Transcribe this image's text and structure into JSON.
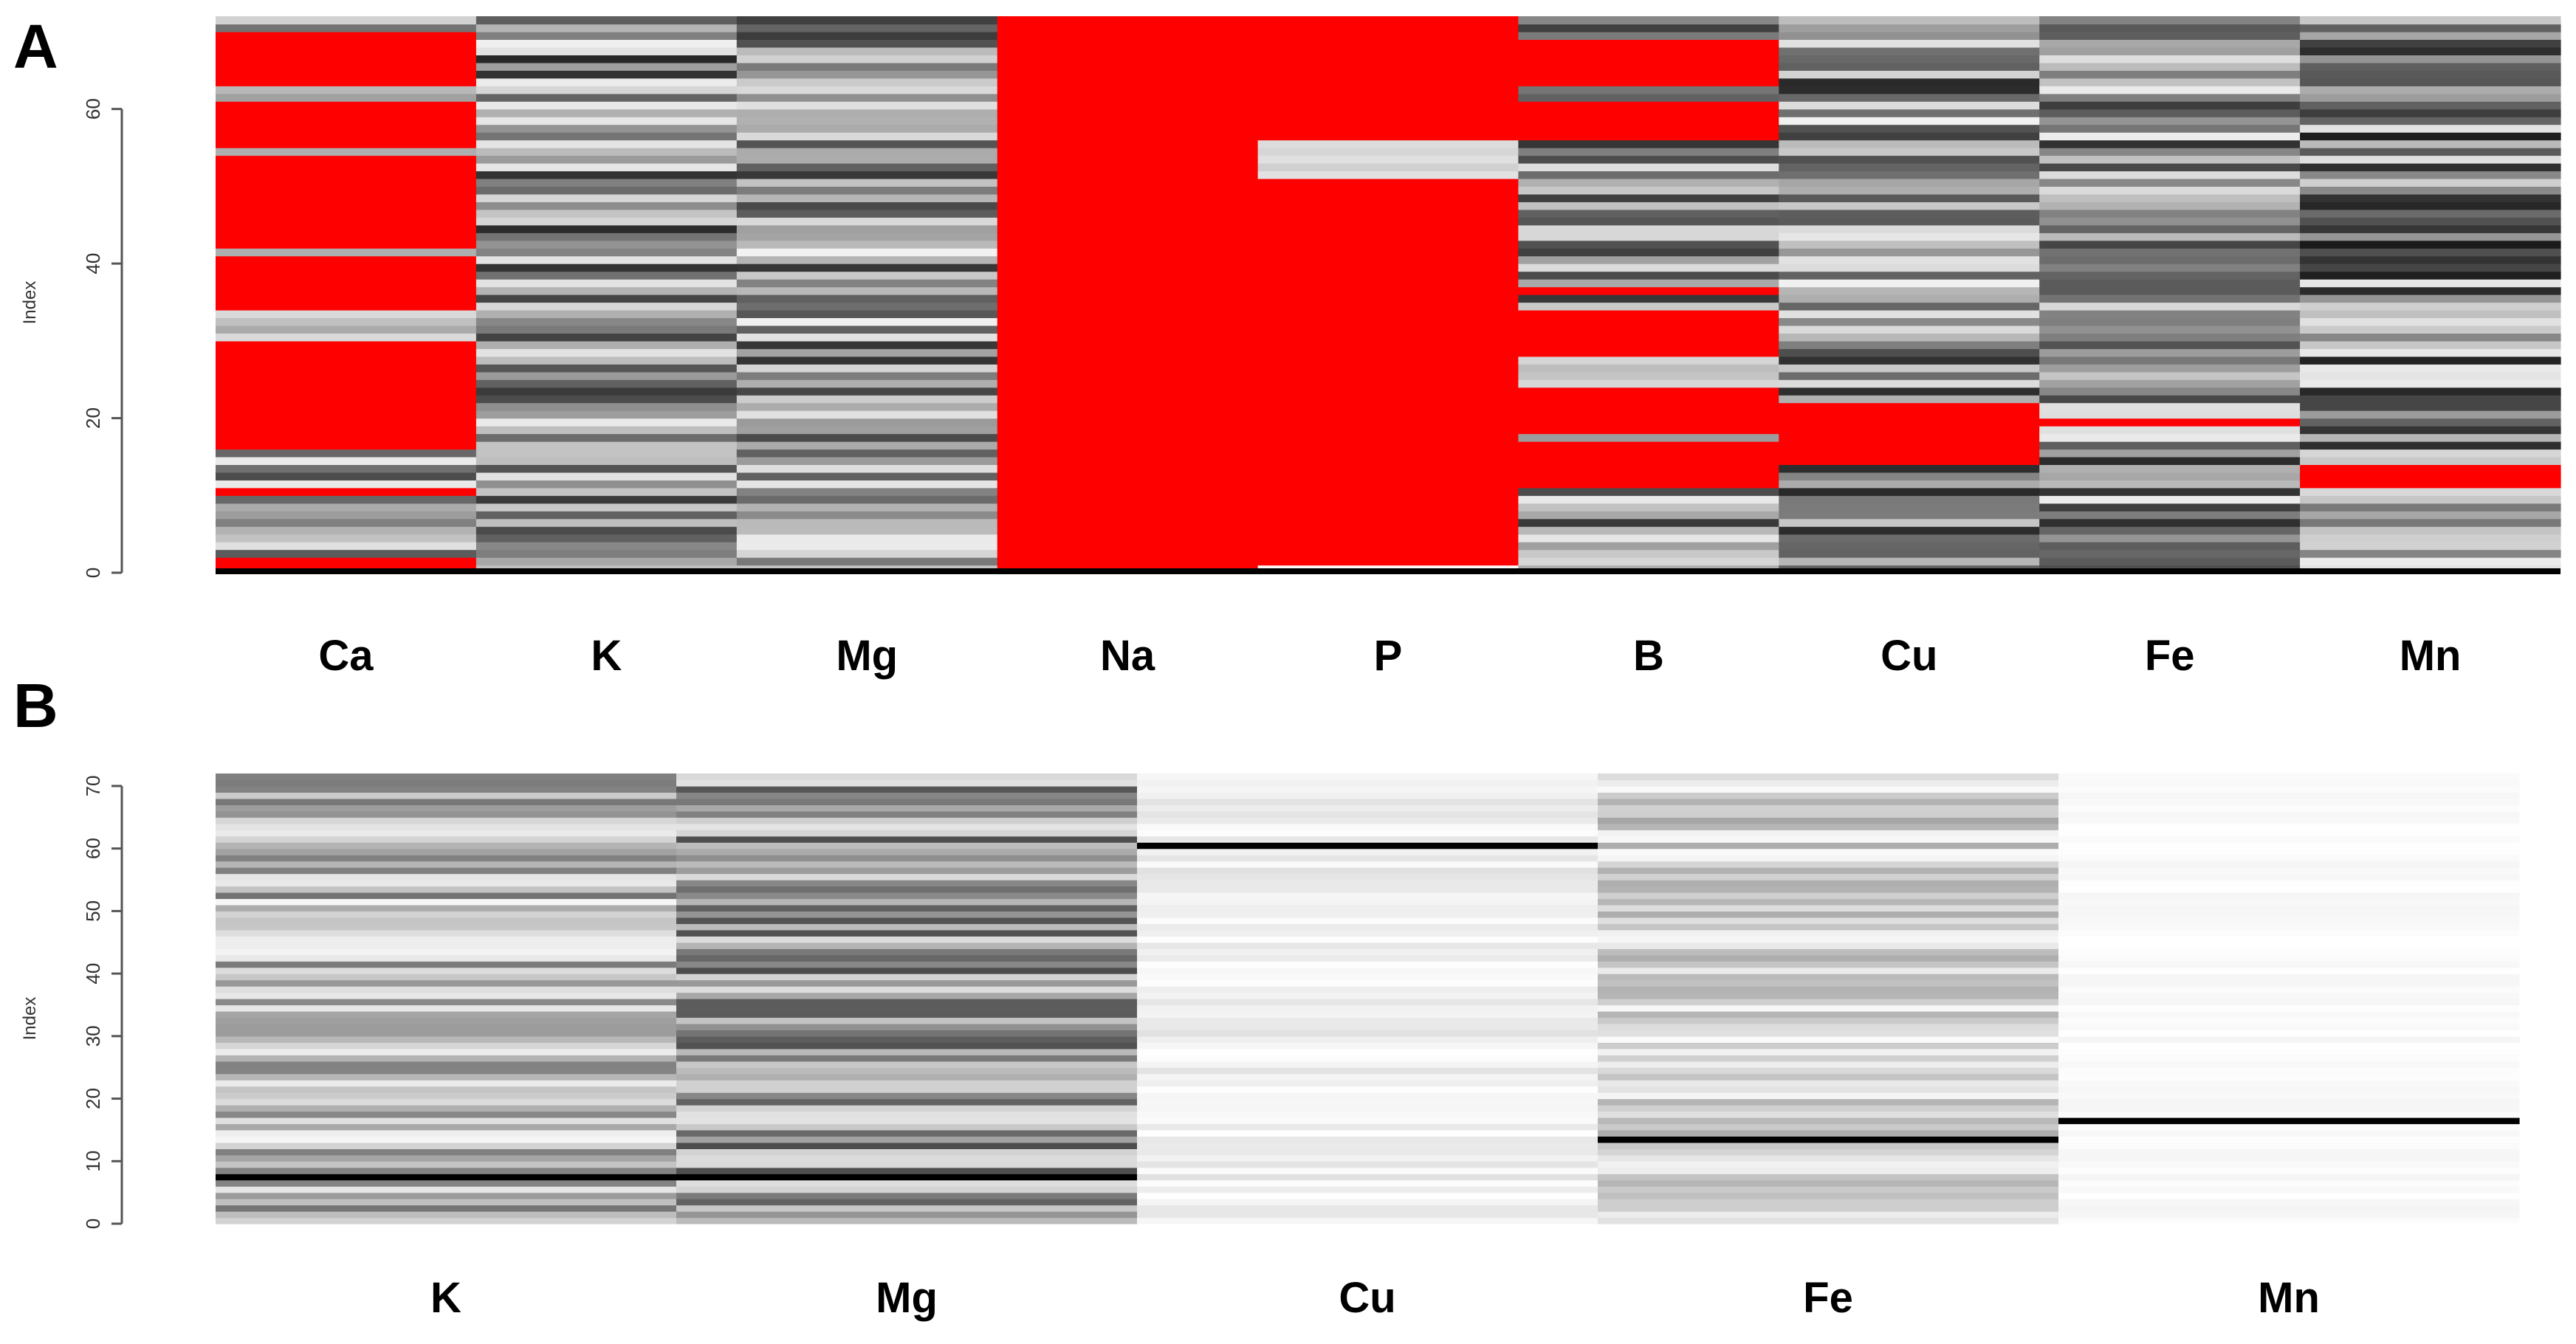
{
  "chart_data": [
    {
      "type": "heatmap",
      "panel_label": "A",
      "ylabel": "Index",
      "ylim": [
        0,
        72
      ],
      "yticks": [
        0,
        20,
        40,
        60
      ],
      "columns": [
        "Ca",
        "K",
        "Mg",
        "Na",
        "P",
        "B",
        "Cu",
        "Fe",
        "Mn"
      ],
      "rows": 72,
      "highlight_color": "#ff0000",
      "palette": "grayscale, white = low, black = high"
    },
    {
      "type": "heatmap",
      "panel_label": "B",
      "ylabel": "Index",
      "ylim": [
        0,
        72
      ],
      "yticks": [
        0,
        10,
        20,
        30,
        40,
        50,
        60,
        70
      ],
      "columns": [
        "K",
        "Mg",
        "Cu",
        "Fe",
        "Mn"
      ],
      "rows": 72,
      "palette": "grayscale, white = low, black = high"
    }
  ]
}
